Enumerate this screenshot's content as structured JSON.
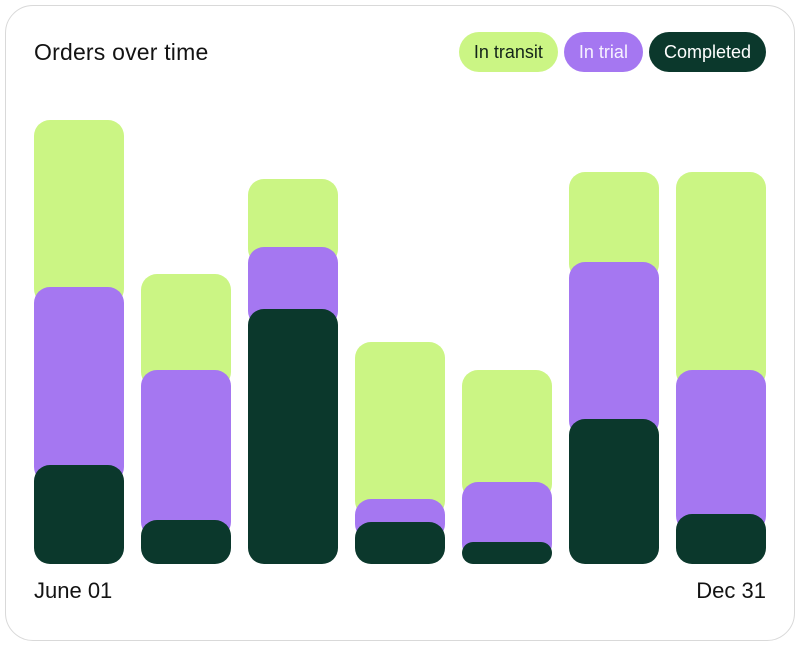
{
  "card": {
    "title": "Orders over time"
  },
  "legend": {
    "items": [
      {
        "label": "In transit",
        "text_color": "#14241a"
      },
      {
        "label": "In trial",
        "text_color": "#f7f2ff"
      },
      {
        "label": "Completed",
        "text_color": "#ffffff"
      }
    ]
  },
  "axis": {
    "start_label": "June 01",
    "end_label": "Dec 31"
  },
  "chart_data": {
    "type": "bar",
    "stacked": true,
    "title": "Orders over time",
    "num_bars": 7,
    "x_axis_labels": [
      "June 01",
      "Dec 31"
    ],
    "value_units": "relative units (no y-axis shown; values proportional to rendered segment heights)",
    "ylim": [
      0,
      452
    ],
    "grid": false,
    "legend_position": "top-right",
    "stack_order_bottom_to_top": [
      "Completed",
      "In trial",
      "In transit"
    ],
    "series": [
      {
        "name": "In transit",
        "color": "#CBF584",
        "values": [
          167,
          96,
          68,
          157,
          112,
          90,
          198
        ]
      },
      {
        "name": "In trial",
        "color": "#A577F1",
        "values": [
          178,
          150,
          62,
          23,
          60,
          157,
          144
        ]
      },
      {
        "name": "Completed",
        "color": "#0B382C",
        "values": [
          99,
          44,
          255,
          42,
          22,
          145,
          50
        ]
      }
    ]
  }
}
